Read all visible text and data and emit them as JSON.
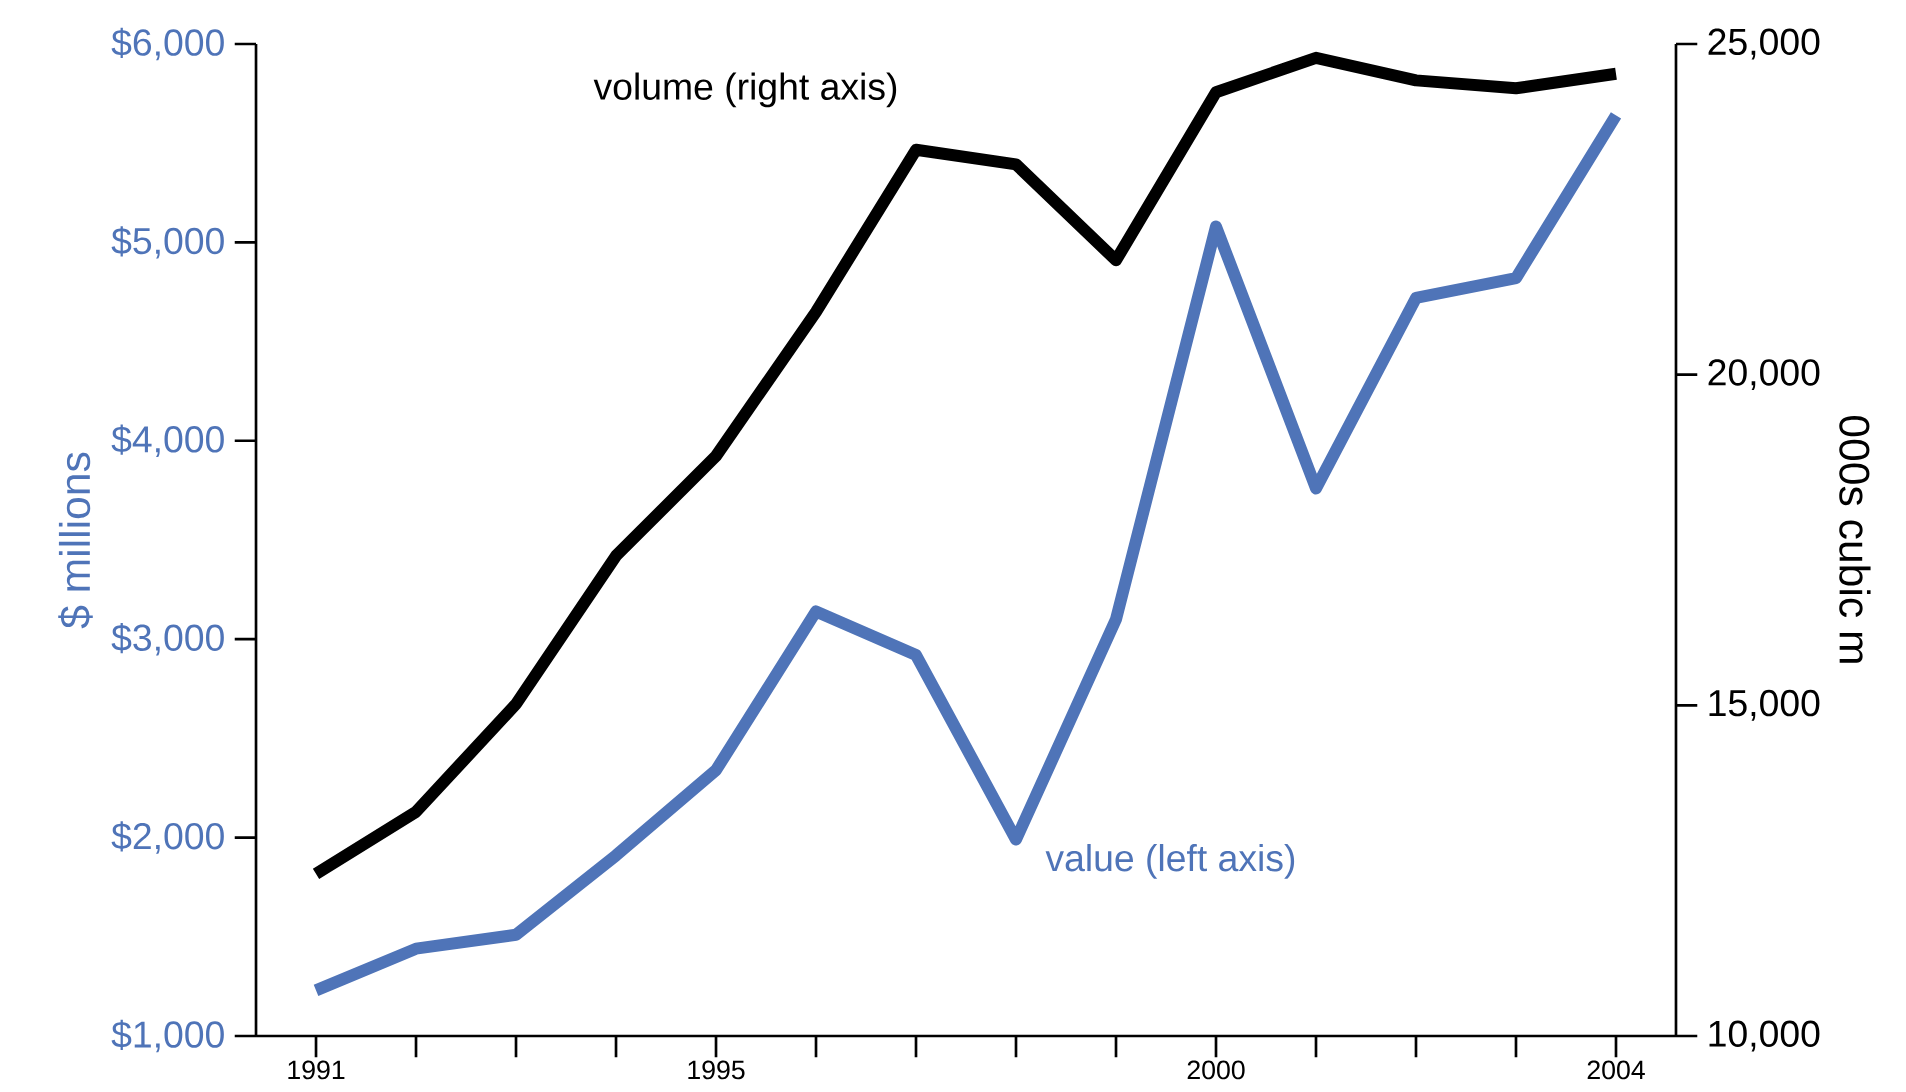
{
  "chart_data": {
    "type": "line",
    "ylabel": "$ millions",
    "y2label": "000s cubic m",
    "x": [
      1991,
      1992,
      1993,
      1994,
      1995,
      1996,
      1997,
      1998,
      1999,
      2000,
      2001,
      2002,
      2003,
      2004
    ],
    "series": [
      {
        "color": "#4f74b8",
        "axis": "y",
        "values": [
          1230,
          1440,
          1510,
          1910,
          2340,
          3140,
          2920,
          1990,
          3100,
          5080,
          3760,
          4720,
          4820,
          5640
        ]
      },
      {
        "color": "#000000",
        "axis": "y2",
        "values": [
          12450,
          13390,
          15020,
          17260,
          18770,
          20950,
          23400,
          23180,
          21730,
          24270,
          24790,
          24450,
          24330,
          24550
        ]
      }
    ],
    "annotations": [
      "volume (right axis)",
      "value (left axis)"
    ],
    "xlim": [
      1990.4,
      2004.6
    ],
    "xticks": [
      1991,
      {
        "value": 1992,
        "label": null
      },
      {
        "value": 1993,
        "label": null
      },
      {
        "value": 1994,
        "label": null
      },
      1995,
      {
        "value": 1996,
        "label": null
      },
      {
        "value": 1997,
        "label": null
      },
      {
        "value": 1998,
        "label": null
      },
      {
        "value": 1999,
        "label": null
      },
      2000,
      {
        "value": 2001,
        "label": null
      },
      {
        "value": 2002,
        "label": null
      },
      {
        "value": 2003,
        "label": null
      },
      2004
    ],
    "ylim": [
      1000,
      6000
    ],
    "yticks": [
      {
        "value": 1000,
        "label": "$1,000"
      },
      {
        "value": 2000,
        "label": "$2,000"
      },
      {
        "value": 3000,
        "label": "$3,000"
      },
      {
        "value": 4000,
        "label": "$4,000"
      },
      {
        "value": 5000,
        "label": "$5,000"
      },
      {
        "value": 6000,
        "label": "$6,000"
      }
    ],
    "y2lim": [
      10000,
      25000
    ],
    "y2ticks": [
      {
        "value": 10000,
        "label": "10,000"
      },
      {
        "value": 15000,
        "label": "15,000"
      },
      {
        "value": 20000,
        "label": "20,000"
      },
      {
        "value": 25000,
        "label": "25,000"
      }
    ]
  }
}
